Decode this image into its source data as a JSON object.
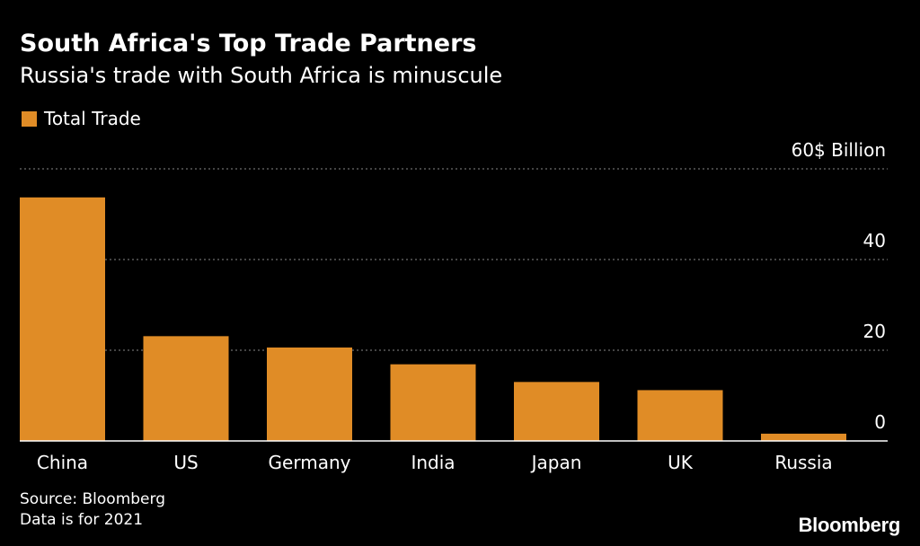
{
  "colors": {
    "background": "#000000",
    "bar": "#e08c26",
    "grid": "#888888",
    "text": "#ffffff"
  },
  "chart_data": {
    "type": "bar",
    "title": "South Africa's Top Trade Partners",
    "subtitle": "Russia's trade with South Africa is minuscule",
    "legend": [
      "Total Trade"
    ],
    "categories": [
      "China",
      "US",
      "Germany",
      "India",
      "Japan",
      "UK",
      "Russia"
    ],
    "series": [
      {
        "name": "Total Trade",
        "values": [
          53.7,
          23.1,
          20.6,
          16.9,
          13.0,
          11.2,
          1.6
        ]
      }
    ],
    "ylim": [
      0,
      60
    ],
    "yticks": [
      0,
      20,
      40,
      60
    ],
    "ytick_labels": [
      "0",
      "20",
      "40",
      "60$ Billion"
    ],
    "ylabel": "",
    "xlabel": "",
    "grid": true
  },
  "footer": {
    "source": "Source: Bloomberg",
    "note": "Data is for 2021"
  },
  "brand": "Bloomberg"
}
